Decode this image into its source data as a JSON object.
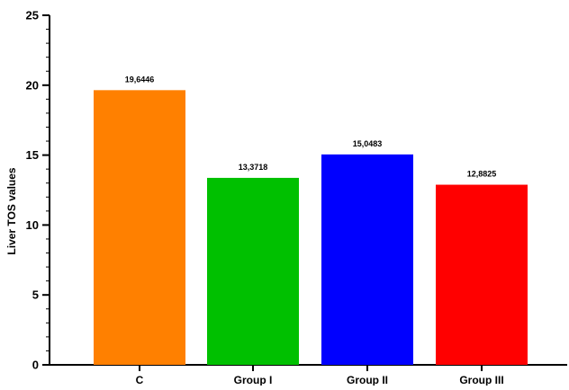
{
  "chart_data": {
    "type": "bar",
    "ylabel": "Liver TOS values",
    "categories": [
      "C",
      "Group I",
      "Group II",
      "Group III"
    ],
    "values": [
      19.6446,
      13.3718,
      15.0483,
      12.8825
    ],
    "data_labels": [
      "19,6446",
      "13,3718",
      "15,0483",
      "12,8825"
    ],
    "colors": [
      "#ff8000",
      "#00c000",
      "#0000ff",
      "#ff0000"
    ],
    "ylim": [
      0,
      25
    ],
    "yticks": [
      0,
      5,
      10,
      15,
      20,
      25
    ],
    "ytick_labels": [
      "0",
      "5",
      "10",
      "15",
      "20",
      "25"
    ],
    "grid": false,
    "legend": "none"
  }
}
